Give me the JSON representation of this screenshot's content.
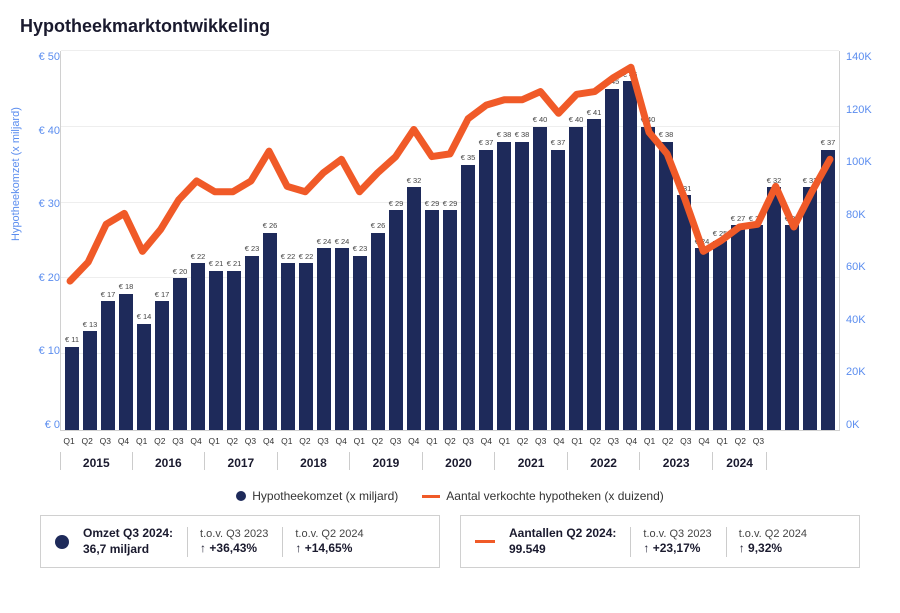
{
  "title": "Hypotheekmarktontwikkeling",
  "chart": {
    "type": "combo-bar-line",
    "y_left": {
      "label": "Hypotheekomzet (x miljard)",
      "min": 0,
      "max": 50,
      "step": 10,
      "tick_prefix": "€ ",
      "color": "#5b8def"
    },
    "y_right": {
      "min": 0,
      "max": 140,
      "step": 20,
      "tick_suffix": "K",
      "color": "#5b8def"
    },
    "bar_color": "#1e2a5a",
    "line_color": "#f05a28",
    "line_width": 2.5,
    "grid_color": "#eeeeee",
    "background_color": "#ffffff",
    "bar_label_prefix": "€ ",
    "bar_label_fontsize": 7.5,
    "years": [
      "2015",
      "2016",
      "2017",
      "2018",
      "2019",
      "2020",
      "2021",
      "2022",
      "2023",
      "2024"
    ],
    "quarters_per_year": {
      "2015": [
        "Q1",
        "Q2",
        "Q3",
        "Q4"
      ],
      "2016": [
        "Q1",
        "Q2",
        "Q3",
        "Q4"
      ],
      "2017": [
        "Q1",
        "Q2",
        "Q3",
        "Q4"
      ],
      "2018": [
        "Q1",
        "Q2",
        "Q3",
        "Q4"
      ],
      "2019": [
        "Q1",
        "Q2",
        "Q3",
        "Q4"
      ],
      "2020": [
        "Q1",
        "Q2",
        "Q3",
        "Q4"
      ],
      "2021": [
        "Q1",
        "Q2",
        "Q3",
        "Q4"
      ],
      "2022": [
        "Q1",
        "Q2",
        "Q3",
        "Q4"
      ],
      "2023": [
        "Q1",
        "Q2",
        "Q3",
        "Q4"
      ],
      "2024": [
        "Q1",
        "Q2",
        "Q3"
      ]
    },
    "bars": [
      11,
      13,
      17,
      18,
      14,
      17,
      20,
      22,
      21,
      21,
      23,
      26,
      22,
      22,
      24,
      24,
      23,
      26,
      29,
      32,
      29,
      29,
      35,
      37,
      38,
      38,
      40,
      37,
      40,
      41,
      45,
      46,
      40,
      38,
      31,
      24,
      25,
      27,
      27,
      32,
      27,
      32,
      37
    ],
    "line_k": [
      55,
      62,
      76,
      80,
      66,
      74,
      85,
      92,
      88,
      88,
      92,
      103,
      90,
      88,
      95,
      100,
      88,
      95,
      101,
      111,
      101,
      102,
      115,
      120,
      122,
      122,
      125,
      117,
      124,
      125,
      130,
      134,
      110,
      102,
      85,
      66,
      70,
      75,
      76,
      90,
      75,
      88,
      100
    ]
  },
  "legend": {
    "bar_label": "Hypotheekomzet (x miljard)",
    "line_label": "Aantal verkochte hypotheken (x duizend)"
  },
  "callouts": [
    {
      "marker": "dot",
      "line1": "Omzet Q3 2024:",
      "line2": "36,7 miljard",
      "subs": [
        {
          "label": "t.o.v. Q3 2023",
          "value": "+36,43%"
        },
        {
          "label": "t.o.v. Q2 2024",
          "value": "+14,65%"
        }
      ]
    },
    {
      "marker": "line",
      "line1": "Aantallen Q2 2024:",
      "line2": "99.549",
      "subs": [
        {
          "label": "t.o.v. Q3 2023",
          "value": "+23,17%"
        },
        {
          "label": "t.o.v. Q2 2024",
          "value": "9,32%"
        }
      ]
    }
  ]
}
